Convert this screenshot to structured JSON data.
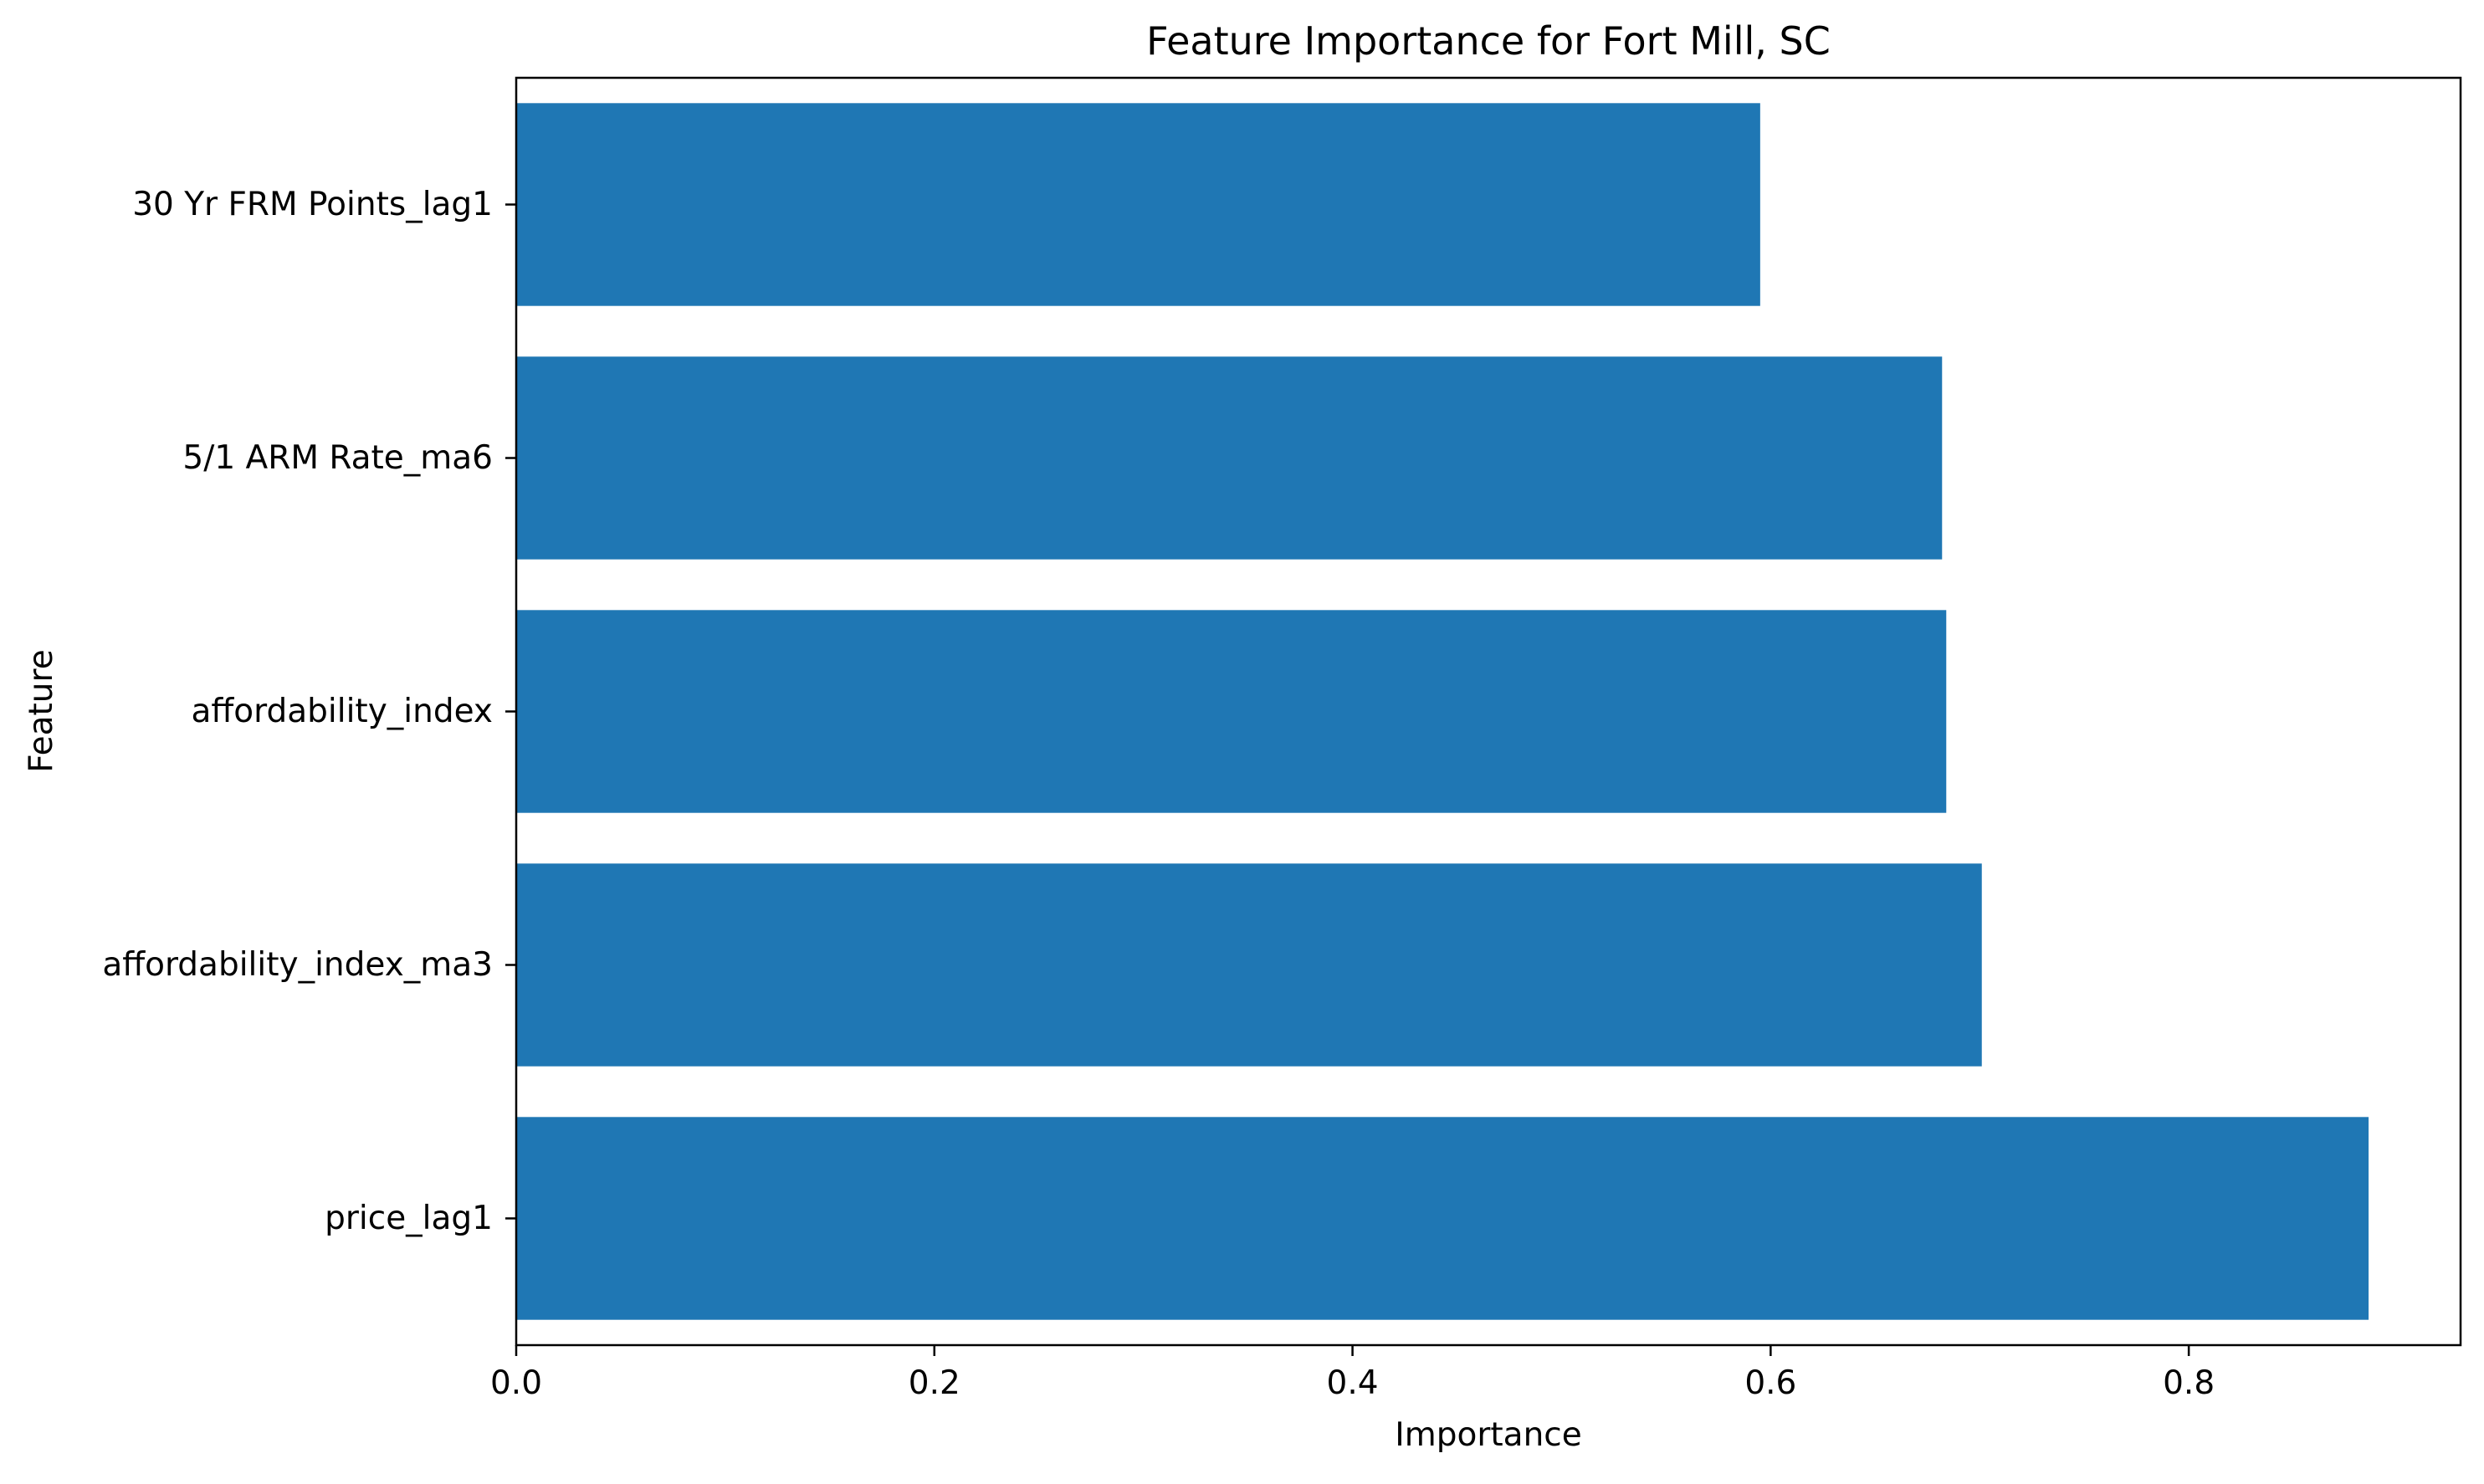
{
  "chart_data": {
    "type": "bar",
    "orientation": "horizontal",
    "title": "Feature Importance for Fort Mill, SC",
    "xlabel": "Importance",
    "ylabel": "Feature",
    "categories": [
      "price_lag1",
      "affordability_index_ma3",
      "affordability_index",
      "5/1 ARM Rate_ma6",
      "30 Yr FRM Points_lag1"
    ],
    "values": [
      0.886,
      0.701,
      0.684,
      0.682,
      0.595
    ],
    "xlim": [
      0,
      0.93
    ],
    "xticks": [
      0.0,
      0.2,
      0.4,
      0.6,
      0.8
    ],
    "xtick_labels": [
      "0.0",
      "0.2",
      "0.4",
      "0.6",
      "0.8"
    ],
    "grid": false,
    "bar_color": "#1f77b4"
  }
}
